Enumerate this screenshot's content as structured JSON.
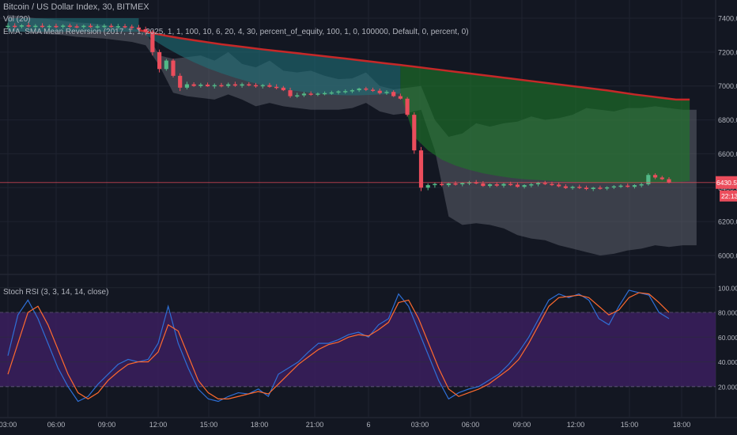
{
  "header": {
    "symbol_line": "Bitcoin / US Dollar Index, 30, BITMEX",
    "volume_label": "Vol (20)",
    "strategy_label": "EMA, SMA Mean Reversion (2017, 1, 1, 2025, 1, 1, 100, 10, 6, 20, 4, 30, percent_of_equity, 100, 1, 0, 100000, Default, 0, percent, 0)"
  },
  "price_badge": {
    "price": "6430.52",
    "countdown": "22:13"
  },
  "colors": {
    "background": "#131722",
    "up_candle": "#53b987",
    "down_candle": "#eb4d5c",
    "teal_band": "#1f6f78",
    "green_band": "#1e7a2a",
    "gray_band": "#5d606b",
    "ema_line": "#c62828",
    "stoch_bg": "#3b1f5e",
    "k_line": "#2f6fd6",
    "d_line": "#ff6a2e",
    "price_line": "#eb4d5c"
  },
  "chart_data": [
    {
      "type": "candlestick",
      "title": "Bitcoin / US Dollar Index, 30, BITMEX",
      "y_axis": {
        "ticks": [
          6000,
          6200,
          6400,
          6600,
          6800,
          7000,
          7200,
          7400
        ],
        "ylim": [
          5930,
          7470
        ],
        "position": "right"
      },
      "x_axis": {
        "ticks": [
          "03:00",
          "06:00",
          "09:00",
          "12:00",
          "15:00",
          "18:00",
          "21:00",
          "6",
          "03:00",
          "06:00",
          "09:00",
          "12:00",
          "15:00",
          "18:00"
        ]
      },
      "last_price": 6430.52,
      "candles": [
        {
          "o": 7350,
          "h": 7370,
          "l": 7335,
          "c": 7355
        },
        {
          "o": 7355,
          "h": 7370,
          "l": 7340,
          "c": 7350
        },
        {
          "o": 7350,
          "h": 7365,
          "l": 7340,
          "c": 7358
        },
        {
          "o": 7358,
          "h": 7372,
          "l": 7345,
          "c": 7352
        },
        {
          "o": 7352,
          "h": 7365,
          "l": 7340,
          "c": 7355
        },
        {
          "o": 7355,
          "h": 7370,
          "l": 7342,
          "c": 7348
        },
        {
          "o": 7348,
          "h": 7362,
          "l": 7338,
          "c": 7354
        },
        {
          "o": 7354,
          "h": 7368,
          "l": 7340,
          "c": 7350
        },
        {
          "o": 7350,
          "h": 7364,
          "l": 7338,
          "c": 7356
        },
        {
          "o": 7356,
          "h": 7368,
          "l": 7342,
          "c": 7352
        },
        {
          "o": 7352,
          "h": 7364,
          "l": 7340,
          "c": 7350
        },
        {
          "o": 7350,
          "h": 7362,
          "l": 7338,
          "c": 7355
        },
        {
          "o": 7355,
          "h": 7368,
          "l": 7342,
          "c": 7350
        },
        {
          "o": 7350,
          "h": 7364,
          "l": 7338,
          "c": 7352
        },
        {
          "o": 7352,
          "h": 7366,
          "l": 7340,
          "c": 7355
        },
        {
          "o": 7355,
          "h": 7368,
          "l": 7342,
          "c": 7350
        },
        {
          "o": 7350,
          "h": 7366,
          "l": 7338,
          "c": 7353
        },
        {
          "o": 7353,
          "h": 7366,
          "l": 7340,
          "c": 7350
        },
        {
          "o": 7350,
          "h": 7362,
          "l": 7330,
          "c": 7345
        },
        {
          "o": 7345,
          "h": 7360,
          "l": 7325,
          "c": 7335
        },
        {
          "o": 7335,
          "h": 7350,
          "l": 7300,
          "c": 7320
        },
        {
          "o": 7320,
          "h": 7330,
          "l": 7180,
          "c": 7200
        },
        {
          "o": 7200,
          "h": 7215,
          "l": 7080,
          "c": 7100
        },
        {
          "o": 7100,
          "h": 7160,
          "l": 7090,
          "c": 7150
        },
        {
          "o": 7150,
          "h": 7160,
          "l": 7050,
          "c": 7060
        },
        {
          "o": 7060,
          "h": 7075,
          "l": 6970,
          "c": 6990
        },
        {
          "o": 6990,
          "h": 7025,
          "l": 6980,
          "c": 7010
        },
        {
          "o": 7010,
          "h": 7022,
          "l": 6995,
          "c": 7000
        },
        {
          "o": 7000,
          "h": 7018,
          "l": 6990,
          "c": 7008
        },
        {
          "o": 7008,
          "h": 7020,
          "l": 6995,
          "c": 6998
        },
        {
          "o": 6998,
          "h": 7015,
          "l": 6985,
          "c": 7005
        },
        {
          "o": 7005,
          "h": 7018,
          "l": 6992,
          "c": 7000
        },
        {
          "o": 7000,
          "h": 7020,
          "l": 6990,
          "c": 7010
        },
        {
          "o": 7010,
          "h": 7025,
          "l": 6995,
          "c": 7002
        },
        {
          "o": 7002,
          "h": 7020,
          "l": 6990,
          "c": 7010
        },
        {
          "o": 7010,
          "h": 7022,
          "l": 6998,
          "c": 7005
        },
        {
          "o": 7005,
          "h": 7018,
          "l": 6990,
          "c": 6998
        },
        {
          "o": 6998,
          "h": 7012,
          "l": 6985,
          "c": 7005
        },
        {
          "o": 7005,
          "h": 7018,
          "l": 6990,
          "c": 6995
        },
        {
          "o": 6995,
          "h": 7010,
          "l": 6980,
          "c": 6990
        },
        {
          "o": 6990,
          "h": 7000,
          "l": 6970,
          "c": 6975
        },
        {
          "o": 6975,
          "h": 6990,
          "l": 6930,
          "c": 6940
        },
        {
          "o": 6940,
          "h": 6960,
          "l": 6930,
          "c": 6945
        },
        {
          "o": 6945,
          "h": 6965,
          "l": 6935,
          "c": 6955
        },
        {
          "o": 6955,
          "h": 6968,
          "l": 6942,
          "c": 6948
        },
        {
          "o": 6948,
          "h": 6962,
          "l": 6940,
          "c": 6955
        },
        {
          "o": 6955,
          "h": 6968,
          "l": 6945,
          "c": 6958
        },
        {
          "o": 6958,
          "h": 6972,
          "l": 6948,
          "c": 6962
        },
        {
          "o": 6962,
          "h": 6975,
          "l": 6950,
          "c": 6968
        },
        {
          "o": 6968,
          "h": 6980,
          "l": 6955,
          "c": 6970
        },
        {
          "o": 6970,
          "h": 6982,
          "l": 6958,
          "c": 6975
        },
        {
          "o": 6975,
          "h": 6990,
          "l": 6965,
          "c": 6985
        },
        {
          "o": 6985,
          "h": 6995,
          "l": 6970,
          "c": 6978
        },
        {
          "o": 6978,
          "h": 6990,
          "l": 6965,
          "c": 6972
        },
        {
          "o": 6972,
          "h": 6985,
          "l": 6950,
          "c": 6958
        },
        {
          "o": 6958,
          "h": 6975,
          "l": 6948,
          "c": 6965
        },
        {
          "o": 6965,
          "h": 6975,
          "l": 6935,
          "c": 6940
        },
        {
          "o": 6940,
          "h": 6955,
          "l": 6920,
          "c": 6925
        },
        {
          "o": 6925,
          "h": 6935,
          "l": 6820,
          "c": 6830
        },
        {
          "o": 6830,
          "h": 6845,
          "l": 6600,
          "c": 6620
        },
        {
          "o": 6620,
          "h": 6640,
          "l": 6380,
          "c": 6400
        },
        {
          "o": 6400,
          "h": 6425,
          "l": 6385,
          "c": 6415
        },
        {
          "o": 6415,
          "h": 6430,
          "l": 6400,
          "c": 6422
        },
        {
          "o": 6422,
          "h": 6435,
          "l": 6408,
          "c": 6415
        },
        {
          "o": 6415,
          "h": 6430,
          "l": 6405,
          "c": 6425
        },
        {
          "o": 6425,
          "h": 6438,
          "l": 6412,
          "c": 6420
        },
        {
          "o": 6420,
          "h": 6432,
          "l": 6408,
          "c": 6428
        },
        {
          "o": 6428,
          "h": 6440,
          "l": 6415,
          "c": 6432
        },
        {
          "o": 6432,
          "h": 6445,
          "l": 6420,
          "c": 6425
        },
        {
          "o": 6425,
          "h": 6438,
          "l": 6405,
          "c": 6410
        },
        {
          "o": 6410,
          "h": 6425,
          "l": 6400,
          "c": 6420
        },
        {
          "o": 6420,
          "h": 6432,
          "l": 6405,
          "c": 6412
        },
        {
          "o": 6412,
          "h": 6428,
          "l": 6400,
          "c": 6422
        },
        {
          "o": 6422,
          "h": 6435,
          "l": 6410,
          "c": 6418
        },
        {
          "o": 6418,
          "h": 6430,
          "l": 6400,
          "c": 6405
        },
        {
          "o": 6405,
          "h": 6420,
          "l": 6395,
          "c": 6415
        },
        {
          "o": 6415,
          "h": 6428,
          "l": 6402,
          "c": 6420
        },
        {
          "o": 6420,
          "h": 6435,
          "l": 6408,
          "c": 6428
        },
        {
          "o": 6428,
          "h": 6440,
          "l": 6415,
          "c": 6422
        },
        {
          "o": 6422,
          "h": 6435,
          "l": 6410,
          "c": 6418
        },
        {
          "o": 6418,
          "h": 6430,
          "l": 6402,
          "c": 6408
        },
        {
          "o": 6408,
          "h": 6420,
          "l": 6392,
          "c": 6398
        },
        {
          "o": 6398,
          "h": 6412,
          "l": 6388,
          "c": 6405
        },
        {
          "o": 6405,
          "h": 6418,
          "l": 6392,
          "c": 6400
        },
        {
          "o": 6400,
          "h": 6412,
          "l": 6385,
          "c": 6392
        },
        {
          "o": 6392,
          "h": 6405,
          "l": 6380,
          "c": 6400
        },
        {
          "o": 6400,
          "h": 6412,
          "l": 6388,
          "c": 6395
        },
        {
          "o": 6395,
          "h": 6408,
          "l": 6385,
          "c": 6402
        },
        {
          "o": 6402,
          "h": 6415,
          "l": 6392,
          "c": 6408
        },
        {
          "o": 6408,
          "h": 6420,
          "l": 6398,
          "c": 6412
        },
        {
          "o": 6412,
          "h": 6425,
          "l": 6400,
          "c": 6405
        },
        {
          "o": 6405,
          "h": 6420,
          "l": 6395,
          "c": 6415
        },
        {
          "o": 6415,
          "h": 6430,
          "l": 6402,
          "c": 6420
        },
        {
          "o": 6420,
          "h": 6485,
          "l": 6412,
          "c": 6475
        },
        {
          "o": 6475,
          "h": 6485,
          "l": 6450,
          "c": 6460
        },
        {
          "o": 6460,
          "h": 6470,
          "l": 6445,
          "c": 6450
        },
        {
          "o": 6450,
          "h": 6462,
          "l": 6425,
          "c": 6430
        }
      ],
      "series": [
        {
          "name": "EMA",
          "type": "line",
          "start": 19,
          "step": 2,
          "values": [
            7330,
            7312,
            7296,
            7282,
            7270,
            7258,
            7246,
            7236,
            7226,
            7216,
            7207,
            7198,
            7189,
            7180,
            7171,
            7162,
            7152,
            7143,
            7133,
            7124,
            7114,
            7104,
            7094,
            7084,
            7074,
            7064,
            7054,
            7044,
            7034,
            7024,
            7014,
            7004,
            6994,
            6984,
            6974,
            6962,
            6950,
            6940,
            6930,
            6920,
            6920
          ]
        },
        {
          "name": "SMA",
          "type": "line",
          "start": 19,
          "step": 2,
          "values": [
            7330,
            7275,
            7225,
            7180,
            7140,
            7105,
            7075,
            7048,
            7025,
            7005,
            6990,
            6975,
            6965,
            6955,
            6948,
            6945,
            6945,
            6948,
            6952,
            6955,
            6700,
            6620,
            6565,
            6530,
            6505,
            6485,
            6470,
            6458,
            6450,
            6445,
            6440,
            6436,
            6432,
            6430,
            6428,
            6427,
            6427,
            6428,
            6430,
            6433,
            6440
          ]
        },
        {
          "name": "Upper band",
          "type": "line",
          "start": 0,
          "step": 2,
          "values": [
            7420,
            7410,
            7400,
            7395,
            7385,
            7375,
            7370,
            7360,
            7350,
            7340,
            7320,
            7180,
            7160,
            7170,
            7180,
            7150,
            7200,
            7130,
            7110,
            7150,
            7090,
            7080,
            7090,
            7060,
            7040,
            7045,
            7080,
            7000,
            6980,
            6990,
            7000,
            6800,
            6700,
            6720,
            6780,
            6760,
            6780,
            6790,
            6820,
            6800,
            6810,
            6830,
            6870,
            6860,
            6850,
            6870,
            6870,
            6880,
            6870,
            6860,
            6860
          ]
        },
        {
          "name": "Lower band",
          "type": "line",
          "start": 0,
          "step": 2,
          "values": [
            7330,
            7320,
            7310,
            7305,
            7300,
            7290,
            7285,
            7280,
            7270,
            7260,
            7240,
            7120,
            6960,
            6940,
            6930,
            6920,
            6950,
            6920,
            6880,
            6900,
            6880,
            6870,
            6860,
            6860,
            6860,
            6870,
            6900,
            6850,
            6830,
            6840,
            6860,
            6620,
            6230,
            6180,
            6190,
            6180,
            6160,
            6120,
            6100,
            6090,
            6060,
            6040,
            6020,
            6000,
            6010,
            6030,
            6040,
            6060,
            6050,
            6060,
            6060
          ]
        }
      ]
    },
    {
      "type": "line",
      "title": "Stoch RSI (3, 3, 14, 14, close)",
      "y_axis": {
        "ticks": [
          "20.0000",
          "40.0000",
          "60.0000",
          "80.0000",
          "100.0000"
        ],
        "ylim": [
          0,
          105
        ],
        "bands": [
          20,
          80
        ]
      },
      "series": [
        {
          "name": "K",
          "values": [
            45,
            78,
            90,
            75,
            55,
            35,
            20,
            8,
            12,
            22,
            30,
            38,
            42,
            40,
            42,
            55,
            85,
            55,
            35,
            18,
            10,
            8,
            12,
            15,
            14,
            18,
            12,
            30,
            35,
            40,
            48,
            55,
            55,
            58,
            62,
            64,
            60,
            70,
            75,
            95,
            85,
            65,
            45,
            25,
            10,
            15,
            18,
            20,
            25,
            30,
            38,
            48,
            60,
            75,
            90,
            95,
            92,
            95,
            90,
            75,
            70,
            85,
            98,
            96,
            94,
            80,
            75
          ]
        },
        {
          "name": "D",
          "values": [
            30,
            55,
            80,
            85,
            70,
            50,
            30,
            15,
            10,
            15,
            25,
            32,
            38,
            40,
            40,
            48,
            70,
            65,
            45,
            25,
            15,
            10,
            10,
            12,
            14,
            16,
            14,
            22,
            30,
            38,
            44,
            50,
            54,
            56,
            60,
            62,
            61,
            66,
            72,
            88,
            90,
            75,
            55,
            35,
            18,
            12,
            15,
            18,
            22,
            28,
            34,
            42,
            55,
            70,
            85,
            92,
            93,
            94,
            92,
            85,
            78,
            82,
            92,
            96,
            95,
            88,
            80
          ]
        }
      ]
    }
  ]
}
